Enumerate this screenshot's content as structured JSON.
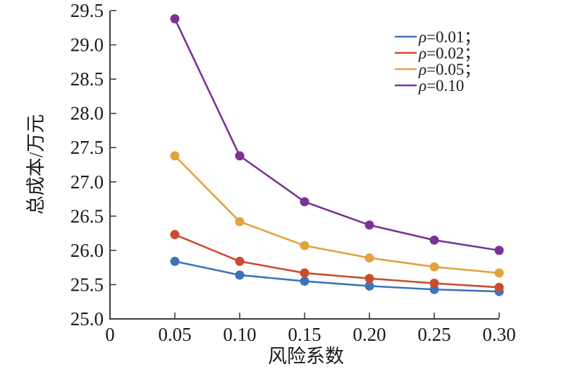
{
  "figure": {
    "background": "#ffffff",
    "axis_color": "#3d3d3d",
    "text_color": "#1a1a1a"
  },
  "chart_data": {
    "type": "line",
    "title": "",
    "xlabel": "风险系数",
    "ylabel": "总成本/万元",
    "xlim": [
      0,
      0.3
    ],
    "ylim": [
      25.0,
      29.5
    ],
    "grid": false,
    "legend_position": "upper-right-inside",
    "marker": "circle",
    "x": [
      0.05,
      0.1,
      0.15,
      0.2,
      0.25,
      0.3
    ],
    "x_tick_values": [
      0,
      0.05,
      0.1,
      0.15,
      0.2,
      0.25,
      0.3
    ],
    "x_tick_labels": [
      "0",
      "0.05",
      "0.10",
      "0.15",
      "0.20",
      "0.25",
      "0.30"
    ],
    "y_tick_values": [
      25.0,
      25.5,
      26.0,
      26.5,
      27.0,
      27.5,
      28.0,
      28.5,
      29.0,
      29.5
    ],
    "y_tick_labels": [
      "25.0",
      "25.5",
      "26.0",
      "26.5",
      "27.0",
      "27.5",
      "28.0",
      "28.5",
      "29.0",
      "29.5"
    ],
    "series": [
      {
        "name": "ρ=0.01",
        "color": "#3C74BB",
        "values": [
          25.84,
          25.64,
          25.55,
          25.48,
          25.43,
          25.4
        ]
      },
      {
        "name": "ρ=0.02",
        "color": "#CD4A2D",
        "values": [
          26.23,
          25.84,
          25.67,
          25.59,
          25.52,
          25.46
        ]
      },
      {
        "name": "ρ=0.05",
        "color": "#E2A33C",
        "values": [
          27.38,
          26.42,
          26.07,
          25.89,
          25.76,
          25.67
        ]
      },
      {
        "name": "ρ=0.10",
        "color": "#7A3392",
        "values": [
          29.38,
          27.38,
          26.71,
          26.37,
          26.15,
          26.0
        ]
      }
    ],
    "legend": {
      "items": [
        {
          "symbol": "ρ",
          "suffix": "=0.01；"
        },
        {
          "symbol": "ρ",
          "suffix": "=0.02；"
        },
        {
          "symbol": "ρ",
          "suffix": "=0.05；"
        },
        {
          "symbol": "ρ",
          "suffix": "=0.10"
        }
      ]
    }
  }
}
